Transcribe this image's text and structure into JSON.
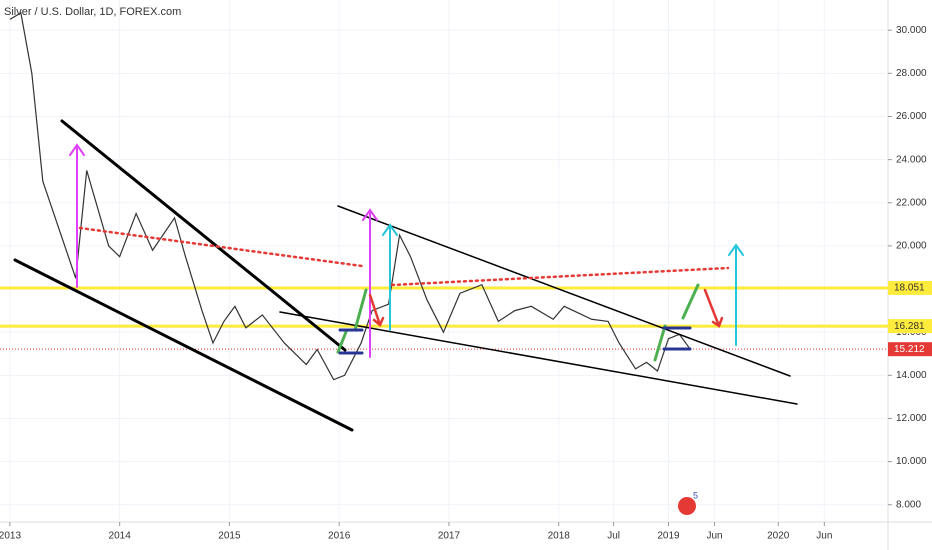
{
  "chart_data": {
    "type": "line",
    "title": "Silver / U.S. Dollar, 1D, FOREX.com",
    "x": [
      2013.0,
      2013.1,
      2013.2,
      2013.3,
      2013.5,
      2013.6,
      2013.7,
      2013.9,
      2014.0,
      2014.15,
      2014.3,
      2014.5,
      2014.6,
      2014.75,
      2014.85,
      2014.95,
      2015.05,
      2015.15,
      2015.3,
      2015.5,
      2015.7,
      2015.8,
      2015.95,
      2016.05,
      2016.2,
      2016.3,
      2016.45,
      2016.55,
      2016.65,
      2016.8,
      2016.95,
      2017.1,
      2017.3,
      2017.45,
      2017.6,
      2017.75,
      2017.95,
      2018.05,
      2018.3,
      2018.45,
      2018.55,
      2018.7,
      2018.8,
      2018.9,
      2019.0,
      2019.1,
      2019.2
    ],
    "series": [
      {
        "name": "Silver / U.S. Dollar",
        "color": "#333333",
        "values": [
          30.5,
          30.8,
          28,
          23,
          20,
          18.5,
          23.5,
          20,
          19.5,
          21.5,
          19.8,
          21.3,
          19.5,
          17,
          15.5,
          16.5,
          17.2,
          16.2,
          16.8,
          15.5,
          14.5,
          15.2,
          13.8,
          14,
          15.5,
          17,
          17.3,
          20.5,
          19.5,
          17.5,
          16,
          17.8,
          18.2,
          16.5,
          17,
          17.2,
          16.6,
          17.2,
          16.6,
          16.5,
          15.5,
          14.3,
          14.6,
          14.2,
          15.7,
          15.9,
          15.2
        ]
      }
    ],
    "xlim": [
      2012.91,
      2021.0
    ],
    "ylim": [
      7.2,
      31.4
    ],
    "xticks": [
      {
        "value": 2013,
        "label": "2013"
      },
      {
        "value": 2014,
        "label": "2014"
      },
      {
        "value": 2015,
        "label": "2015"
      },
      {
        "value": 2016,
        "label": "2016"
      },
      {
        "value": 2017,
        "label": "2017"
      },
      {
        "value": 2018,
        "label": "2018"
      },
      {
        "value": 2018.5,
        "label": "Jul"
      },
      {
        "value": 2019,
        "label": "2019"
      },
      {
        "value": 2019.42,
        "label": "Jun"
      },
      {
        "value": 2020,
        "label": "2020"
      },
      {
        "value": 2020.42,
        "label": "Jun"
      }
    ],
    "yticks": [
      {
        "value": 8,
        "label": "8.000"
      },
      {
        "value": 10,
        "label": "10.000"
      },
      {
        "value": 12,
        "label": "12.000"
      },
      {
        "value": 14,
        "label": "14.000"
      },
      {
        "value": 16,
        "label": "16.000"
      },
      {
        "value": 18,
        "label": "18.000"
      },
      {
        "value": 20,
        "label": "20.000"
      },
      {
        "value": 22,
        "label": "22.000"
      },
      {
        "value": 24,
        "label": "24.000"
      },
      {
        "value": 26,
        "label": "26.000"
      },
      {
        "value": 28,
        "label": "28.000"
      },
      {
        "value": 30,
        "label": "30.000"
      }
    ],
    "levels": [
      {
        "value": 18.051,
        "color": "#ffeb3b"
      },
      {
        "value": 16.281,
        "color": "#ffeb3b"
      }
    ],
    "last_price": 15.212,
    "last_price_color": "#e53935",
    "event_badge": "5"
  }
}
